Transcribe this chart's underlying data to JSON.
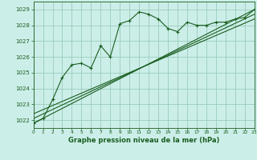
{
  "title": "Graphe pression niveau de la mer (hPa)",
  "bg_color": "#cceee8",
  "grid_color": "#99ccbb",
  "line_color": "#1a5e20",
  "xlim": [
    0,
    23
  ],
  "ylim": [
    1021.5,
    1029.5
  ],
  "yticks": [
    1022,
    1023,
    1024,
    1025,
    1026,
    1027,
    1028,
    1029
  ],
  "xticks": [
    0,
    1,
    2,
    3,
    4,
    5,
    6,
    7,
    8,
    9,
    10,
    11,
    12,
    13,
    14,
    15,
    16,
    17,
    18,
    19,
    20,
    21,
    22,
    23
  ],
  "series1_x": [
    0,
    1,
    2,
    3,
    4,
    5,
    6,
    7,
    8,
    9,
    10,
    11,
    12,
    13,
    14,
    15,
    16,
    17,
    18,
    19,
    20,
    21,
    22,
    23
  ],
  "series1_y": [
    1021.8,
    1022.1,
    1023.3,
    1024.7,
    1025.5,
    1025.6,
    1025.3,
    1026.7,
    1026.0,
    1028.1,
    1028.3,
    1028.85,
    1028.7,
    1028.4,
    1027.8,
    1027.6,
    1028.2,
    1028.0,
    1028.0,
    1028.2,
    1028.2,
    1028.4,
    1028.5,
    1029.0
  ],
  "trend1_x": [
    0,
    23
  ],
  "trend1_y": [
    1021.8,
    1029.0
  ],
  "trend2_x": [
    0,
    23
  ],
  "trend2_y": [
    1022.1,
    1028.7
  ],
  "trend3_x": [
    0,
    23
  ],
  "trend3_y": [
    1022.4,
    1028.4
  ]
}
